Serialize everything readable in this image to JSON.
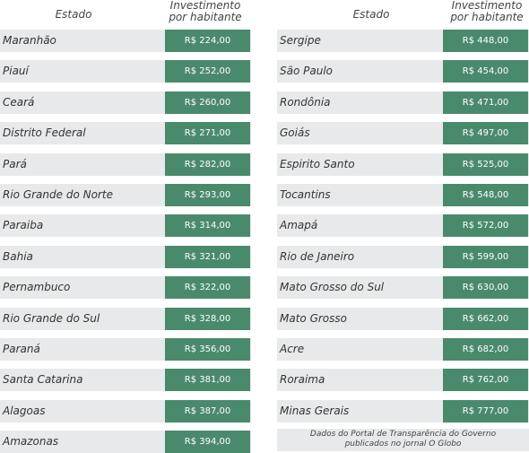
{
  "headers": {
    "estado": "Estado",
    "investimento_line1": "Investimento",
    "investimento_line2": "por habitante"
  },
  "footnote": {
    "line1": "Dados do Portal de Transparência do Governo",
    "line2": "publicados no jornal O Globo"
  },
  "colors": {
    "row_bg": "#e8e9ea",
    "value_bg": "#4a8a6c",
    "value_text": "#ffffff"
  },
  "chart_data": {
    "type": "table",
    "columns": [
      "Estado",
      "Investimento por habitante"
    ],
    "rows": [
      {
        "estado": "Maranhão",
        "valor": "R$ 224,00"
      },
      {
        "estado": "Piauí",
        "valor": "R$ 252,00"
      },
      {
        "estado": "Ceará",
        "valor": "R$ 260,00"
      },
      {
        "estado": "Distrito Federal",
        "valor": "R$ 271,00"
      },
      {
        "estado": "Pará",
        "valor": "R$ 282,00"
      },
      {
        "estado": "Rio Grande do Norte",
        "valor": "R$ 293,00"
      },
      {
        "estado": "Paraiba",
        "valor": "R$ 314,00"
      },
      {
        "estado": "Bahia",
        "valor": "R$ 321,00"
      },
      {
        "estado": "Pernambuco",
        "valor": "R$ 322,00"
      },
      {
        "estado": "Rio Grande do Sul",
        "valor": "R$ 328,00"
      },
      {
        "estado": "Paraná",
        "valor": "R$ 356,00"
      },
      {
        "estado": "Santa Catarina",
        "valor": "R$ 381,00"
      },
      {
        "estado": "Alagoas",
        "valor": "R$ 387,00"
      },
      {
        "estado": "Amazonas",
        "valor": "R$ 394,00"
      },
      {
        "estado": "Sergipe",
        "valor": "R$ 448,00"
      },
      {
        "estado": "São Paulo",
        "valor": "R$ 454,00"
      },
      {
        "estado": "Rondônia",
        "valor": "R$ 471,00"
      },
      {
        "estado": "Goiás",
        "valor": "R$ 497,00"
      },
      {
        "estado": "Espirito Santo",
        "valor": "R$ 525,00"
      },
      {
        "estado": "Tocantins",
        "valor": "R$ 548,00"
      },
      {
        "estado": "Amapá",
        "valor": "R$ 572,00"
      },
      {
        "estado": "Rio de Janeiro",
        "valor": "R$ 599,00"
      },
      {
        "estado": "Mato Grosso do Sul",
        "valor": "R$ 630,00"
      },
      {
        "estado": "Mato Grosso",
        "valor": "R$ 662,00"
      },
      {
        "estado": "Acre",
        "valor": "R$ 682,00"
      },
      {
        "estado": "Roraima",
        "valor": "R$ 762,00"
      },
      {
        "estado": "Minas Gerais",
        "valor": "R$ 777,00"
      }
    ]
  }
}
